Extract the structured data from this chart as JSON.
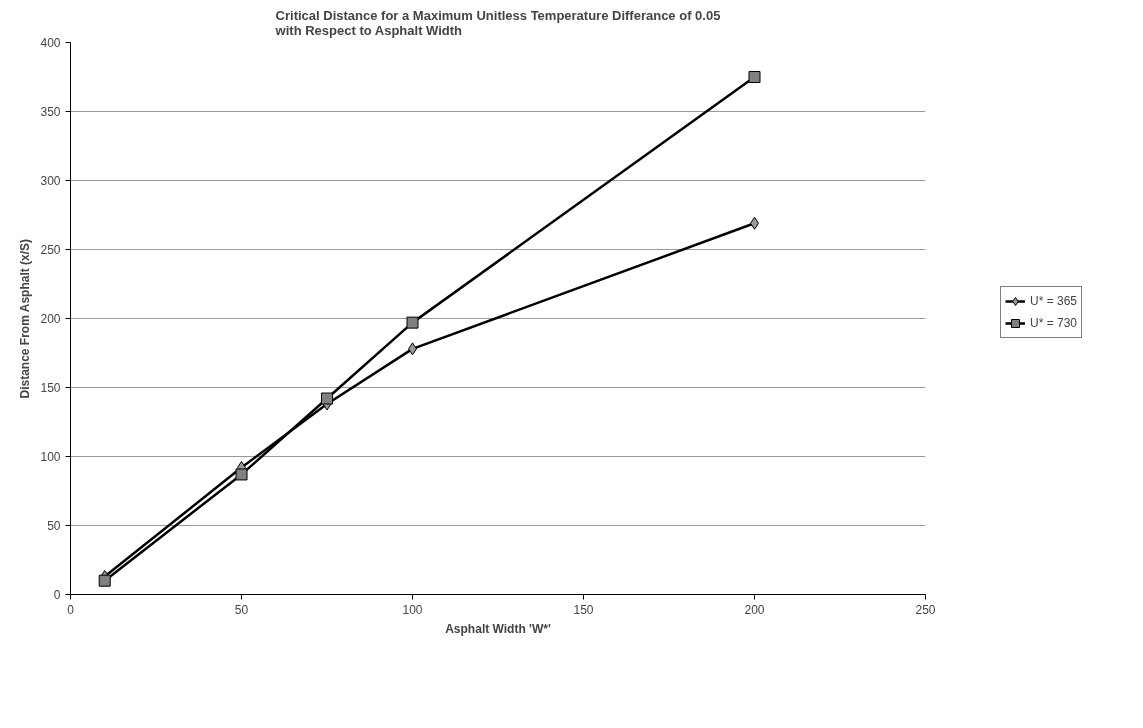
{
  "chart_data": {
    "type": "line",
    "title": "Critical Distance for a Maximum Unitless Temperature Differance of 0.05\nwith Respect to Asphalt Width",
    "xlabel": "Asphalt Width 'W*'",
    "ylabel": "Distance From Asphalt (x/S)",
    "xlim": [
      0,
      250
    ],
    "xticks": [
      0,
      50,
      100,
      150,
      200,
      250
    ],
    "ylim": [
      0,
      400
    ],
    "yticks": [
      0,
      50,
      100,
      150,
      200,
      250,
      300,
      350,
      400
    ],
    "grid": "y",
    "legend": "right",
    "series": [
      {
        "name": "U* = 365",
        "color": "#000000",
        "marker": "diamond",
        "x": [
          10,
          50,
          75,
          100,
          200
        ],
        "values": [
          13,
          92,
          138,
          178,
          269
        ]
      },
      {
        "name": "U* = 730",
        "color": "#000000",
        "marker": "square",
        "x": [
          10,
          50,
          75,
          100,
          200
        ],
        "values": [
          10,
          87,
          142,
          197,
          375
        ]
      }
    ]
  }
}
